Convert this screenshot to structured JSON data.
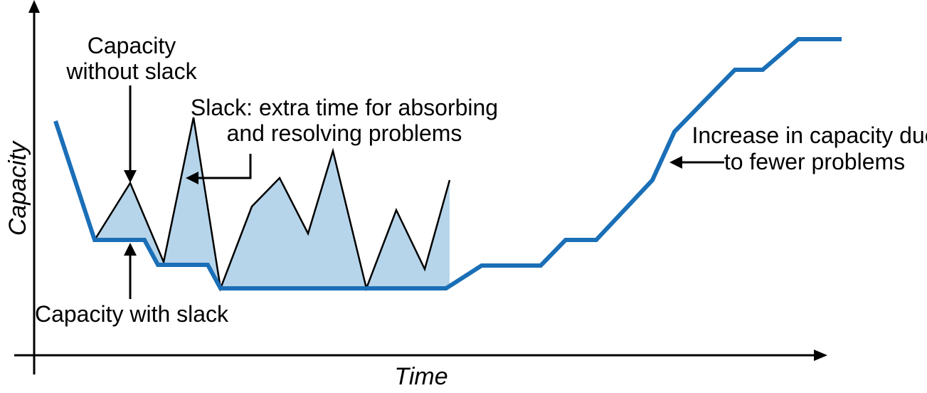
{
  "axes": {
    "x_label": "Time",
    "y_label": "Capacity"
  },
  "annotations": {
    "capacity_without_slack": [
      "Capacity",
      "without slack"
    ],
    "slack": [
      "Slack: extra time for absorbing",
      "and resolving problems"
    ],
    "capacity_with_slack": "Capacity with slack",
    "increase": [
      "Increase in capacity due",
      "to fewer problems"
    ]
  },
  "colors": {
    "capacity_line": "#1a6fb7",
    "slack_fill": "#b6d5ea",
    "ink": "#000000"
  }
}
